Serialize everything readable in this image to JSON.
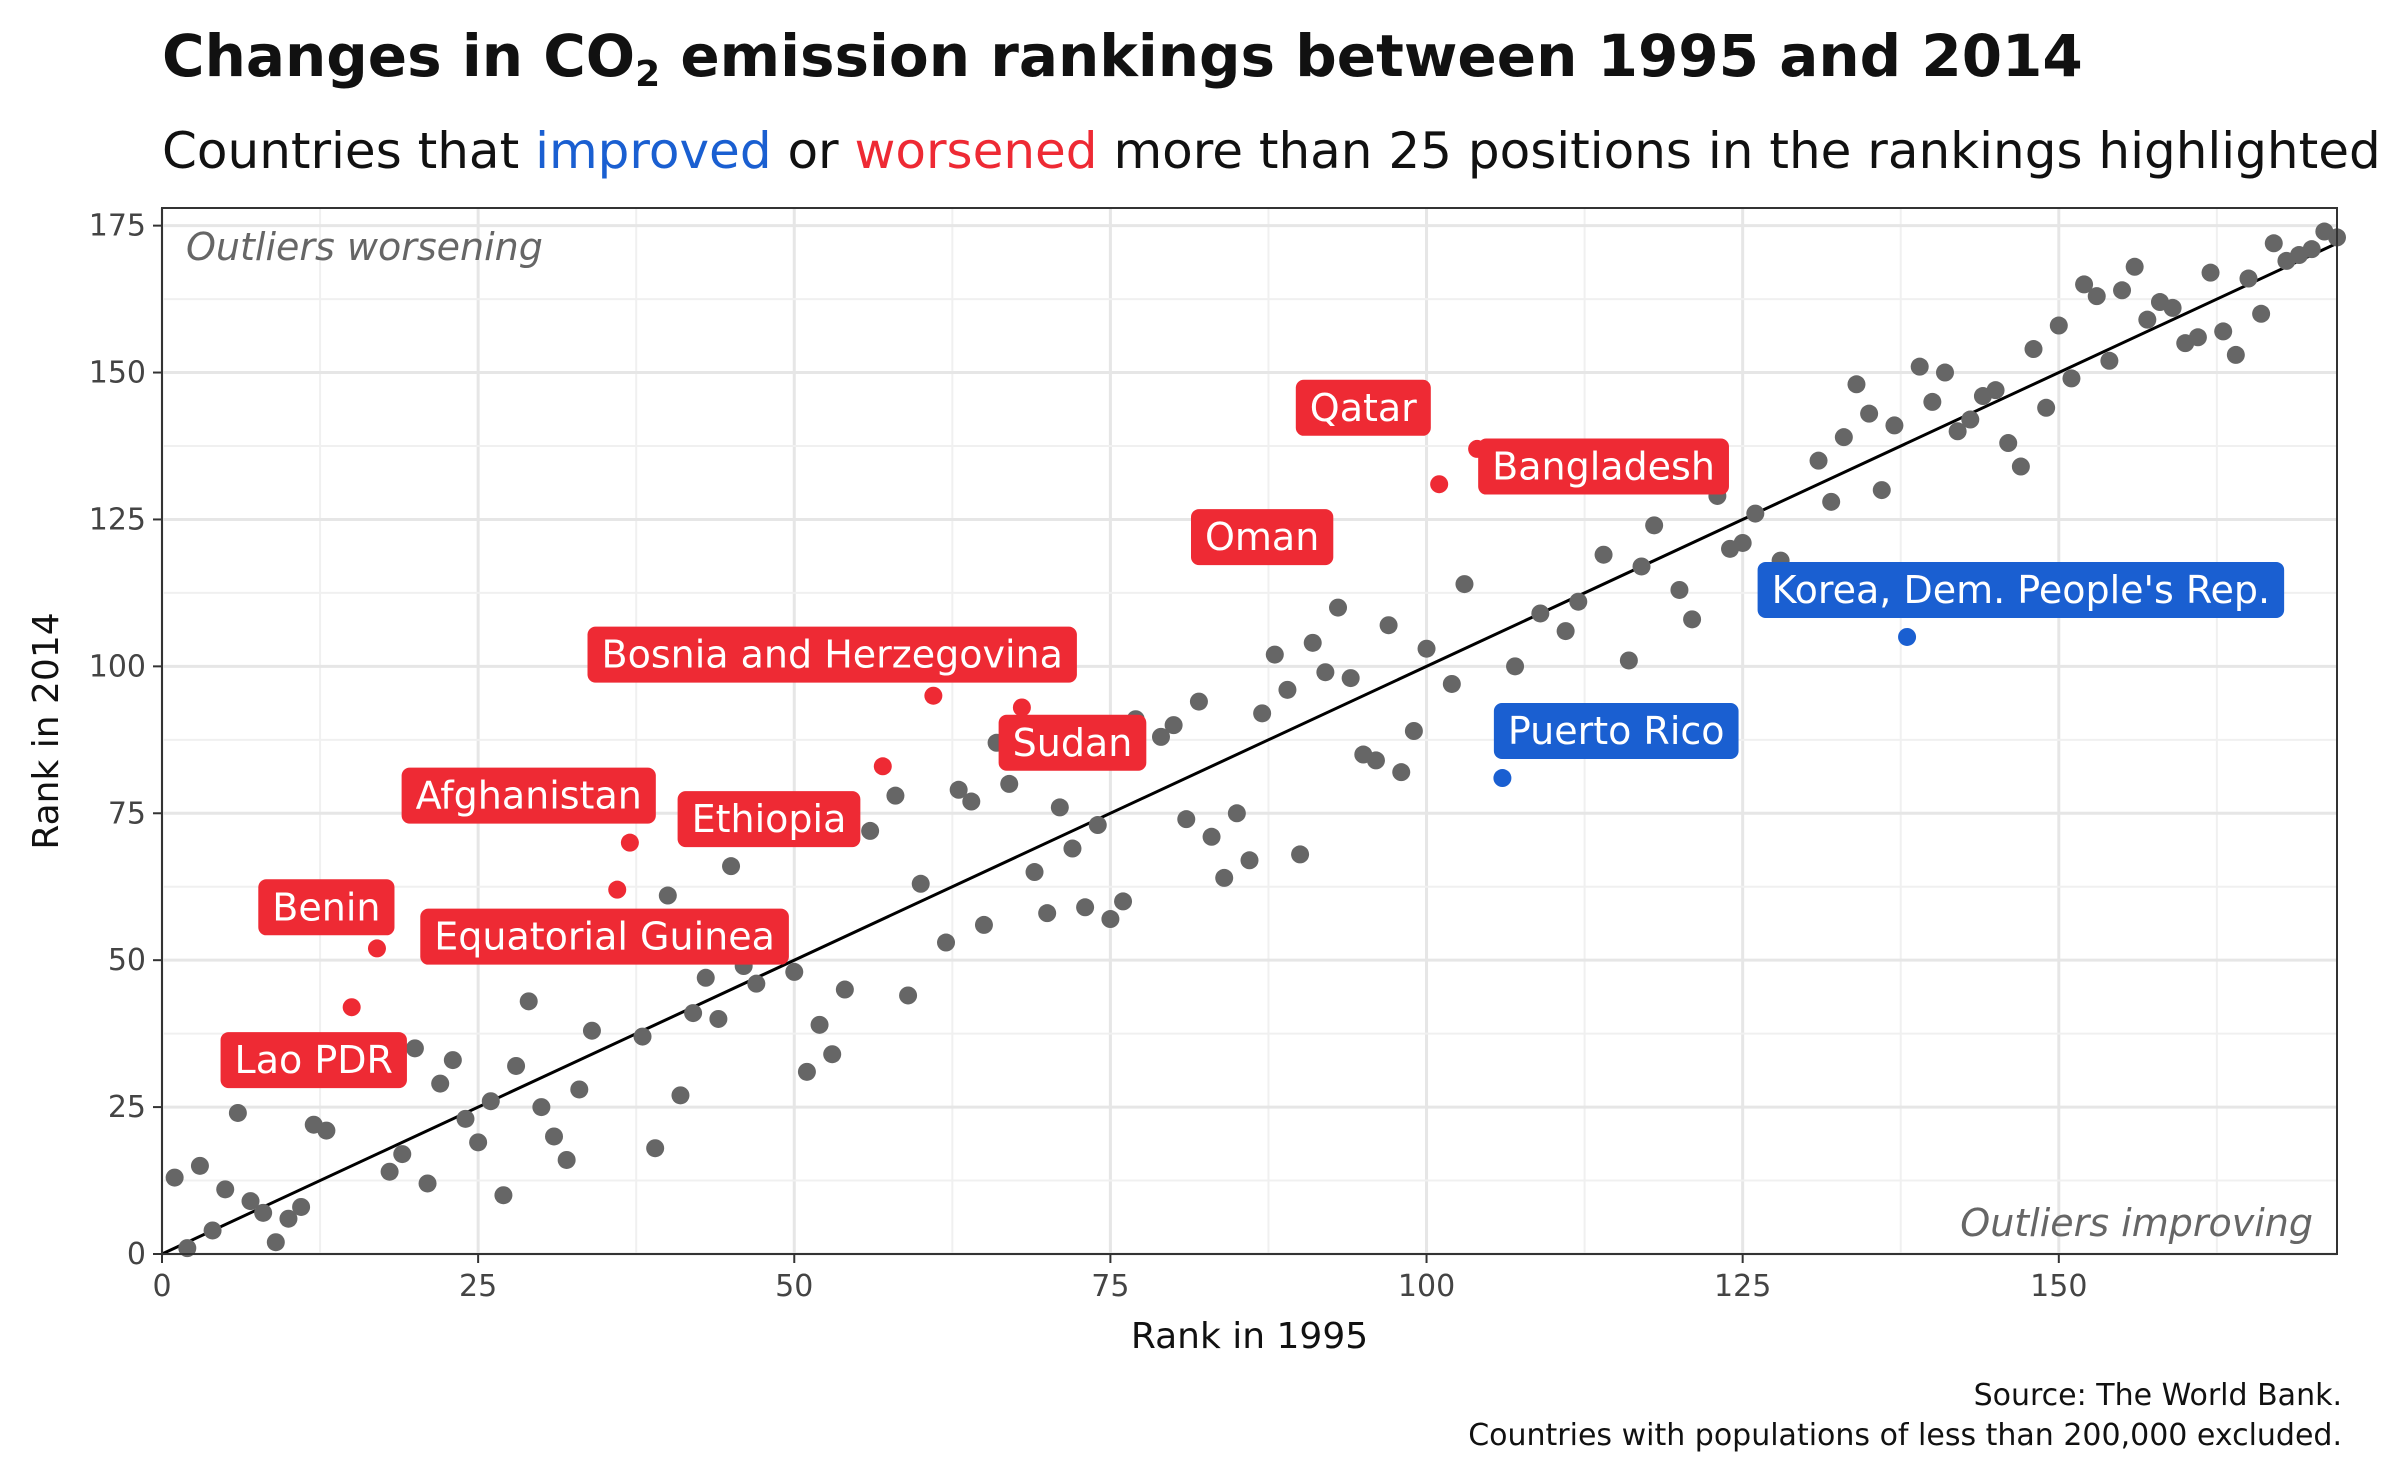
{
  "title": {
    "pre": "Changes in CO",
    "sub": "2",
    "post": " emission rankings between 1995 and 2014"
  },
  "subtitle": {
    "pre": "Countries that ",
    "improved": "improved",
    "mid": " or ",
    "worsened": "worsened",
    "post": " more than 25 positions in the rankings highlighted"
  },
  "caption": {
    "line1": "Source: The World Bank.",
    "line2": "Countries with populations of less than 200,000 excluded."
  },
  "colors": {
    "neutral": "#666666",
    "worsened": "#ee2a34",
    "improved": "#1a5fd1",
    "line": "#000000",
    "grid": "#e6e6e6"
  },
  "chart_data": {
    "type": "scatter",
    "xlabel": "Rank in 1995",
    "ylabel": "Rank in 2014",
    "xlim": [
      0,
      172
    ],
    "ylim": [
      0,
      178
    ],
    "xticks": [
      0,
      25,
      50,
      75,
      100,
      125,
      150
    ],
    "yticks": [
      0,
      25,
      50,
      75,
      100,
      125,
      150,
      175
    ],
    "grid": true,
    "reference_line": "y = x",
    "annotations": {
      "top_left": "Outliers worsening",
      "bottom_right": "Outliers improving"
    },
    "highlighted": [
      {
        "label": "Lao PDR",
        "x": 15,
        "y": 42,
        "group": "worsened"
      },
      {
        "label": "Benin",
        "x": 17,
        "y": 52,
        "group": "worsened"
      },
      {
        "label": "Equatorial Guinea",
        "x": 36,
        "y": 62,
        "group": "worsened"
      },
      {
        "label": "Afghanistan",
        "x": 37,
        "y": 70,
        "group": "worsened"
      },
      {
        "label": "Ethiopia",
        "x": 57,
        "y": 83,
        "group": "worsened"
      },
      {
        "label": "Bosnia and Herzegovina",
        "x": 61,
        "y": 95,
        "group": "worsened"
      },
      {
        "label": "Sudan",
        "x": 68,
        "y": 93,
        "group": "worsened"
      },
      {
        "label": "Oman",
        "x": 101,
        "y": 131,
        "group": "worsened"
      },
      {
        "label": "Qatar",
        "x": 104,
        "y": 137,
        "group": "worsened"
      },
      {
        "label": "Bangladesh",
        "x": 105,
        "y": 132,
        "group": "worsened"
      },
      {
        "label": "Puerto Rico",
        "x": 106,
        "y": 81,
        "group": "improved"
      },
      {
        "label": "Korea, Dem. People's Rep.",
        "x": 138,
        "y": 105,
        "group": "improved"
      }
    ],
    "points": [
      [
        1,
        13
      ],
      [
        2,
        1
      ],
      [
        3,
        15
      ],
      [
        4,
        4
      ],
      [
        5,
        11
      ],
      [
        6,
        24
      ],
      [
        7,
        9
      ],
      [
        8,
        7
      ],
      [
        9,
        2
      ],
      [
        10,
        6
      ],
      [
        11,
        8
      ],
      [
        12,
        22
      ],
      [
        13,
        21
      ],
      [
        18,
        14
      ],
      [
        19,
        17
      ],
      [
        20,
        35
      ],
      [
        21,
        12
      ],
      [
        22,
        29
      ],
      [
        23,
        33
      ],
      [
        24,
        23
      ],
      [
        25,
        19
      ],
      [
        26,
        26
      ],
      [
        27,
        10
      ],
      [
        28,
        32
      ],
      [
        29,
        43
      ],
      [
        30,
        25
      ],
      [
        31,
        20
      ],
      [
        32,
        16
      ],
      [
        33,
        28
      ],
      [
        34,
        38
      ],
      [
        38,
        37
      ],
      [
        39,
        18
      ],
      [
        40,
        61
      ],
      [
        41,
        27
      ],
      [
        42,
        41
      ],
      [
        43,
        47
      ],
      [
        44,
        40
      ],
      [
        45,
        66
      ],
      [
        46,
        49
      ],
      [
        47,
        46
      ],
      [
        50,
        48
      ],
      [
        51,
        31
      ],
      [
        52,
        39
      ],
      [
        53,
        34
      ],
      [
        54,
        45
      ],
      [
        56,
        72
      ],
      [
        58,
        78
      ],
      [
        59,
        44
      ],
      [
        60,
        63
      ],
      [
        62,
        53
      ],
      [
        63,
        79
      ],
      [
        64,
        77
      ],
      [
        65,
        56
      ],
      [
        66,
        87
      ],
      [
        67,
        80
      ],
      [
        69,
        65
      ],
      [
        70,
        58
      ],
      [
        71,
        76
      ],
      [
        72,
        69
      ],
      [
        73,
        59
      ],
      [
        74,
        73
      ],
      [
        75,
        57
      ],
      [
        76,
        60
      ],
      [
        77,
        91
      ],
      [
        79,
        88
      ],
      [
        80,
        90
      ],
      [
        81,
        74
      ],
      [
        82,
        94
      ],
      [
        83,
        71
      ],
      [
        84,
        64
      ],
      [
        85,
        75
      ],
      [
        86,
        67
      ],
      [
        87,
        92
      ],
      [
        88,
        102
      ],
      [
        89,
        96
      ],
      [
        90,
        68
      ],
      [
        91,
        104
      ],
      [
        92,
        99
      ],
      [
        93,
        110
      ],
      [
        94,
        98
      ],
      [
        95,
        85
      ],
      [
        96,
        84
      ],
      [
        97,
        107
      ],
      [
        98,
        82
      ],
      [
        99,
        89
      ],
      [
        100,
        103
      ],
      [
        102,
        97
      ],
      [
        103,
        114
      ],
      [
        107,
        100
      ],
      [
        109,
        109
      ],
      [
        111,
        106
      ],
      [
        112,
        111
      ],
      [
        114,
        119
      ],
      [
        115,
        136
      ],
      [
        116,
        101
      ],
      [
        117,
        117
      ],
      [
        118,
        124
      ],
      [
        119,
        133
      ],
      [
        120,
        113
      ],
      [
        121,
        108
      ],
      [
        123,
        129
      ],
      [
        124,
        120
      ],
      [
        125,
        121
      ],
      [
        126,
        126
      ],
      [
        128,
        118
      ],
      [
        131,
        135
      ],
      [
        132,
        128
      ],
      [
        133,
        139
      ],
      [
        134,
        148
      ],
      [
        135,
        143
      ],
      [
        136,
        130
      ],
      [
        137,
        141
      ],
      [
        139,
        151
      ],
      [
        140,
        145
      ],
      [
        141,
        150
      ],
      [
        142,
        140
      ],
      [
        143,
        142
      ],
      [
        144,
        146
      ],
      [
        145,
        147
      ],
      [
        146,
        138
      ],
      [
        147,
        134
      ],
      [
        148,
        154
      ],
      [
        149,
        144
      ],
      [
        150,
        158
      ],
      [
        151,
        149
      ],
      [
        152,
        165
      ],
      [
        153,
        163
      ],
      [
        154,
        152
      ],
      [
        155,
        164
      ],
      [
        156,
        168
      ],
      [
        157,
        159
      ],
      [
        158,
        162
      ],
      [
        159,
        161
      ],
      [
        160,
        155
      ],
      [
        161,
        156
      ],
      [
        162,
        167
      ],
      [
        163,
        157
      ],
      [
        164,
        153
      ],
      [
        165,
        166
      ],
      [
        166,
        160
      ],
      [
        167,
        172
      ],
      [
        168,
        169
      ],
      [
        169,
        170
      ],
      [
        170,
        171
      ],
      [
        171,
        174
      ],
      [
        172,
        173
      ]
    ]
  }
}
